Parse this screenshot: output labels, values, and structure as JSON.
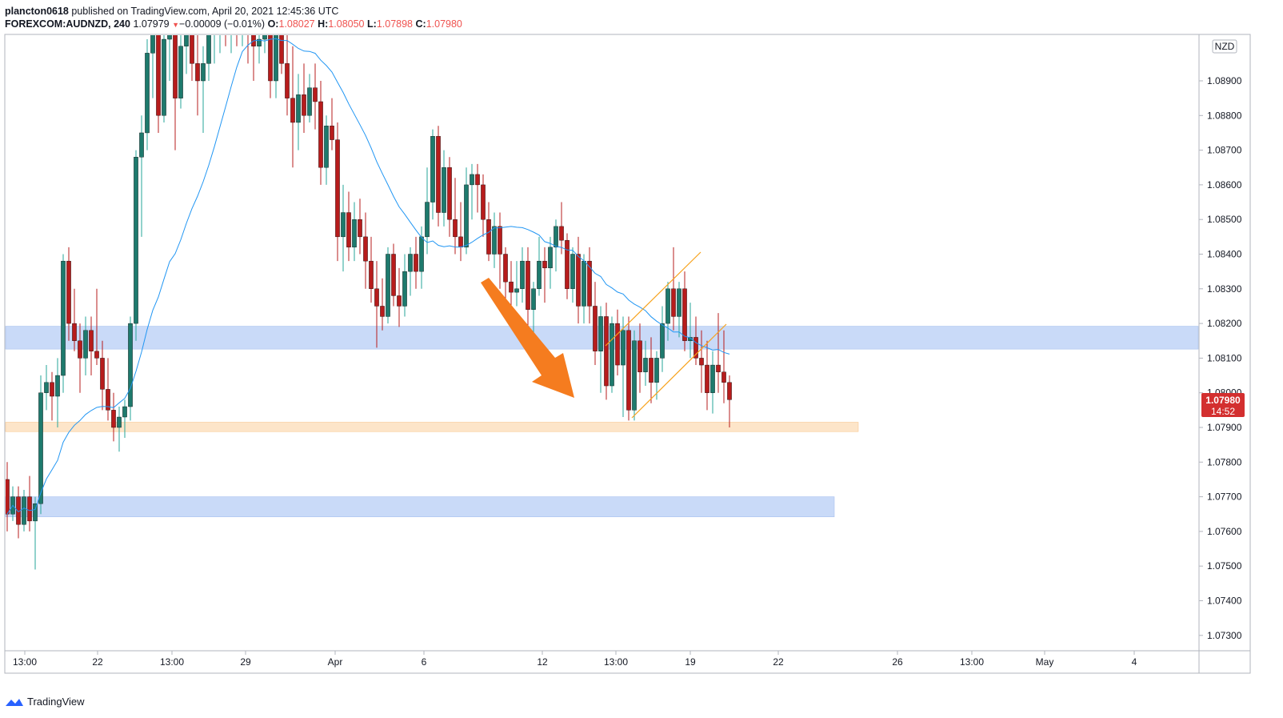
{
  "header": {
    "author": "plancton0618",
    "published_text": "published on TradingView.com, April 20, 2021 12:45:36 UTC"
  },
  "symbol_bar": {
    "symbol": "FOREXCOM:AUDNZD, 240",
    "last": "1.07979",
    "arrow": "▼",
    "change": "−0.00009 (−0.01%)",
    "o_label": "O:",
    "o_value": "1.08027",
    "h_label": "H:",
    "h_value": "1.08050",
    "l_label": "L:",
    "l_value": "1.07898",
    "c_label": "C:",
    "c_value": "1.07980"
  },
  "footer": {
    "brand": "TradingView",
    "icon": "tradingview-logo-icon"
  },
  "colors": {
    "bull": "#26a69a",
    "bear": "#ef5350",
    "ma": "#2196f3",
    "zone_blue": "#bfd4f7",
    "zone_orange": "#fde0c0",
    "channel": "#f7a21b",
    "arrow": "#f57c1f",
    "price_badge": "#d32f2f"
  },
  "chart_data": {
    "type": "candlestick",
    "symbol": "FOREXCOM:AUDNZD",
    "timeframe": "240",
    "currency": "NZD",
    "ylim": [
      1.0725,
      1.0912
    ],
    "y_ticks": [
      "1.08900",
      "1.08800",
      "1.08700",
      "1.08600",
      "1.08500",
      "1.08400",
      "1.08300",
      "1.08200",
      "1.08100",
      "1.08000",
      "1.07900",
      "1.07800",
      "1.07700",
      "1.07600",
      "1.07500",
      "1.07400",
      "1.07300"
    ],
    "x_tick_labels": [
      "13:00",
      "22",
      "13:00",
      "29",
      "Apr",
      "6",
      "12",
      "13:00",
      "19",
      "22",
      "26",
      "13:00",
      "May",
      "4"
    ],
    "last_price": "1.07980",
    "countdown": "14:52",
    "zones": [
      {
        "kind": "resistance",
        "y_low": 1.08126,
        "y_high": 1.08192,
        "extends": "full"
      },
      {
        "kind": "support",
        "y_low": 1.07888,
        "y_high": 1.07915,
        "extends": "to_26"
      },
      {
        "kind": "demand",
        "y_low": 1.07642,
        "y_high": 1.077,
        "extends": "to_26"
      }
    ],
    "annotations": [
      "rising channel (orange)",
      "bearish arrow (orange)"
    ],
    "candles_ohlc": [
      [
        1.0775,
        1.078,
        1.076,
        1.0765
      ],
      [
        1.0765,
        1.0773,
        1.0763,
        1.077
      ],
      [
        1.077,
        1.0773,
        1.0758,
        1.0762
      ],
      [
        1.0762,
        1.0772,
        1.076,
        1.077
      ],
      [
        1.077,
        1.0776,
        1.076,
        1.0763
      ],
      [
        1.0763,
        1.077,
        1.0749,
        1.0768
      ],
      [
        1.0768,
        1.0805,
        1.0765,
        1.08
      ],
      [
        1.08,
        1.0808,
        1.0795,
        1.0803
      ],
      [
        1.0803,
        1.0806,
        1.0792,
        1.0799
      ],
      [
        1.0799,
        1.081,
        1.079,
        1.0805
      ],
      [
        1.0805,
        1.084,
        1.08,
        1.0838
      ],
      [
        1.0838,
        1.0842,
        1.0815,
        1.082
      ],
      [
        1.082,
        1.083,
        1.0812,
        1.0815
      ],
      [
        1.0815,
        1.082,
        1.08,
        1.081
      ],
      [
        1.081,
        1.0822,
        1.0805,
        1.0818
      ],
      [
        1.0818,
        1.0822,
        1.0805,
        1.0812
      ],
      [
        1.0812,
        1.083,
        1.0808,
        1.081
      ],
      [
        1.081,
        1.0815,
        1.0795,
        1.0801
      ],
      [
        1.0801,
        1.081,
        1.0792,
        1.0795
      ],
      [
        1.0795,
        1.08,
        1.0786,
        1.079
      ],
      [
        1.079,
        1.0796,
        1.0783,
        1.0793
      ],
      [
        1.0793,
        1.0798,
        1.0787,
        1.0796
      ],
      [
        1.0796,
        1.0822,
        1.0792,
        1.082
      ],
      [
        1.082,
        1.087,
        1.0815,
        1.0868
      ],
      [
        1.0868,
        1.088,
        1.0845,
        1.0875
      ],
      [
        1.0875,
        1.0902,
        1.087,
        1.0898
      ],
      [
        1.0898,
        1.0912,
        1.0885,
        1.091
      ],
      [
        1.091,
        1.0912,
        1.0875,
        1.088
      ],
      [
        1.088,
        1.0905,
        1.0878,
        1.0902
      ],
      [
        1.0902,
        1.0912,
        1.089,
        1.0905
      ],
      [
        1.0905,
        1.0912,
        1.087,
        1.0885
      ],
      [
        1.0885,
        1.0905,
        1.0882,
        1.09
      ],
      [
        1.09,
        1.0912,
        1.0892,
        1.091
      ],
      [
        1.091,
        1.0912,
        1.089,
        1.0895
      ],
      [
        1.0895,
        1.0905,
        1.088,
        1.089
      ],
      [
        1.089,
        1.09,
        1.0875,
        1.0895
      ],
      [
        1.0895,
        1.0912,
        1.089,
        1.0905
      ],
      [
        1.0905,
        1.0912,
        1.0895,
        1.0908
      ],
      [
        1.0908,
        1.0912,
        1.0898,
        1.091
      ],
      [
        1.091,
        1.0912,
        1.09,
        1.0905
      ],
      [
        1.0905,
        1.0912,
        1.0898,
        1.091
      ],
      [
        1.091,
        1.0912,
        1.09,
        1.0908
      ],
      [
        1.0908,
        1.0912,
        1.09,
        1.091
      ],
      [
        1.091,
        1.0912,
        1.0895,
        1.0905
      ],
      [
        1.0905,
        1.0912,
        1.089,
        1.09
      ],
      [
        1.09,
        1.091,
        1.0895,
        1.0902
      ],
      [
        1.0902,
        1.0912,
        1.0898,
        1.0905
      ],
      [
        1.0905,
        1.091,
        1.0885,
        1.089
      ],
      [
        1.089,
        1.0908,
        1.0885,
        1.0905
      ],
      [
        1.0905,
        1.0912,
        1.0892,
        1.0895
      ],
      [
        1.0895,
        1.0905,
        1.088,
        1.0885
      ],
      [
        1.0885,
        1.09,
        1.0865,
        1.0878
      ],
      [
        1.0878,
        1.0892,
        1.087,
        1.0886
      ],
      [
        1.0886,
        1.0895,
        1.0875,
        1.088
      ],
      [
        1.088,
        1.0892,
        1.0878,
        1.0888
      ],
      [
        1.0888,
        1.0895,
        1.0876,
        1.0884
      ],
      [
        1.0884,
        1.089,
        1.086,
        1.0865
      ],
      [
        1.0865,
        1.088,
        1.086,
        1.0877
      ],
      [
        1.0877,
        1.0885,
        1.087,
        1.0873
      ],
      [
        1.0873,
        1.0878,
        1.0838,
        1.0845
      ],
      [
        1.0845,
        1.086,
        1.0835,
        1.0852
      ],
      [
        1.0852,
        1.0858,
        1.0838,
        1.0842
      ],
      [
        1.0842,
        1.0855,
        1.0838,
        1.085
      ],
      [
        1.085,
        1.0856,
        1.084,
        1.0845
      ],
      [
        1.0845,
        1.0852,
        1.083,
        1.0838
      ],
      [
        1.0838,
        1.0845,
        1.0826,
        1.083
      ],
      [
        1.083,
        1.0838,
        1.0813,
        1.0825
      ],
      [
        1.0825,
        1.0833,
        1.0818,
        1.0822
      ],
      [
        1.0822,
        1.0842,
        1.082,
        1.084
      ],
      [
        1.084,
        1.0843,
        1.0825,
        1.0828
      ],
      [
        1.0828,
        1.0836,
        1.0819,
        1.0825
      ],
      [
        1.0825,
        1.084,
        1.0822,
        1.0835
      ],
      [
        1.0835,
        1.0842,
        1.0828,
        1.084
      ],
      [
        1.084,
        1.0845,
        1.083,
        1.0835
      ],
      [
        1.0835,
        1.0848,
        1.083,
        1.0845
      ],
      [
        1.0845,
        1.0865,
        1.084,
        1.0855
      ],
      [
        1.0855,
        1.0876,
        1.085,
        1.0874
      ],
      [
        1.0874,
        1.0877,
        1.0848,
        1.0852
      ],
      [
        1.0852,
        1.087,
        1.0848,
        1.0865
      ],
      [
        1.0865,
        1.0868,
        1.0845,
        1.085
      ],
      [
        1.085,
        1.0862,
        1.084,
        1.0845
      ],
      [
        1.0845,
        1.0855,
        1.0838,
        1.0842
      ],
      [
        1.0842,
        1.0865,
        1.084,
        1.086
      ],
      [
        1.086,
        1.0866,
        1.085,
        1.0863
      ],
      [
        1.0863,
        1.0866,
        1.0852,
        1.086
      ],
      [
        1.086,
        1.0863,
        1.0845,
        1.085
      ],
      [
        1.085,
        1.0855,
        1.0838,
        1.084
      ],
      [
        1.084,
        1.0852,
        1.0836,
        1.0848
      ],
      [
        1.0848,
        1.0852,
        1.083,
        1.084
      ],
      [
        1.084,
        1.0842,
        1.0825,
        1.0832
      ],
      [
        1.0832,
        1.0838,
        1.0822,
        1.0829
      ],
      [
        1.0829,
        1.0838,
        1.0825,
        1.083
      ],
      [
        1.083,
        1.0842,
        1.0826,
        1.0838
      ],
      [
        1.0838,
        1.0842,
        1.0818,
        1.0824
      ],
      [
        1.0824,
        1.0832,
        1.0815,
        1.083
      ],
      [
        1.083,
        1.0845,
        1.0828,
        1.0838
      ],
      [
        1.0838,
        1.0842,
        1.0826,
        1.0836
      ],
      [
        1.0836,
        1.0845,
        1.083,
        1.0842
      ],
      [
        1.0842,
        1.085,
        1.0835,
        1.0848
      ],
      [
        1.0848,
        1.0855,
        1.084,
        1.0844
      ],
      [
        1.0844,
        1.0846,
        1.0827,
        1.083
      ],
      [
        1.083,
        1.0842,
        1.0826,
        1.084
      ],
      [
        1.084,
        1.0845,
        1.082,
        1.0825
      ],
      [
        1.0825,
        1.084,
        1.082,
        1.0838
      ],
      [
        1.0838,
        1.0842,
        1.082,
        1.0825
      ],
      [
        1.0825,
        1.0832,
        1.0808,
        1.0812
      ],
      [
        1.0812,
        1.0825,
        1.08,
        1.0822
      ],
      [
        1.0822,
        1.0826,
        1.0798,
        1.0802
      ],
      [
        1.0802,
        1.0822,
        1.08,
        1.082
      ],
      [
        1.082,
        1.0824,
        1.0805,
        1.0808
      ],
      [
        1.0808,
        1.0822,
        1.0793,
        1.0818
      ],
      [
        1.0818,
        1.0822,
        1.0792,
        1.0795
      ],
      [
        1.0795,
        1.0818,
        1.0792,
        1.0815
      ],
      [
        1.0815,
        1.082,
        1.08,
        1.0806
      ],
      [
        1.0806,
        1.0815,
        1.0802,
        1.081
      ],
      [
        1.081,
        1.0816,
        1.0797,
        1.0803
      ],
      [
        1.0803,
        1.0812,
        1.0798,
        1.081
      ],
      [
        1.081,
        1.0825,
        1.0806,
        1.082
      ],
      [
        1.082,
        1.0832,
        1.0815,
        1.083
      ],
      [
        1.083,
        1.0842,
        1.0818,
        1.0822
      ],
      [
        1.0822,
        1.0832,
        1.0816,
        1.083
      ],
      [
        1.083,
        1.0835,
        1.0812,
        1.0815
      ],
      [
        1.0815,
        1.0826,
        1.081,
        1.0816
      ],
      [
        1.0816,
        1.0822,
        1.0808,
        1.081
      ],
      [
        1.081,
        1.0818,
        1.08,
        1.0808
      ],
      [
        1.0808,
        1.0815,
        1.0795,
        1.08
      ],
      [
        1.08,
        1.0812,
        1.0794,
        1.0808
      ],
      [
        1.0808,
        1.0823,
        1.08,
        1.0806
      ],
      [
        1.0806,
        1.0818,
        1.0797,
        1.0803
      ],
      [
        1.0803,
        1.0805,
        1.079,
        1.0798
      ]
    ]
  }
}
